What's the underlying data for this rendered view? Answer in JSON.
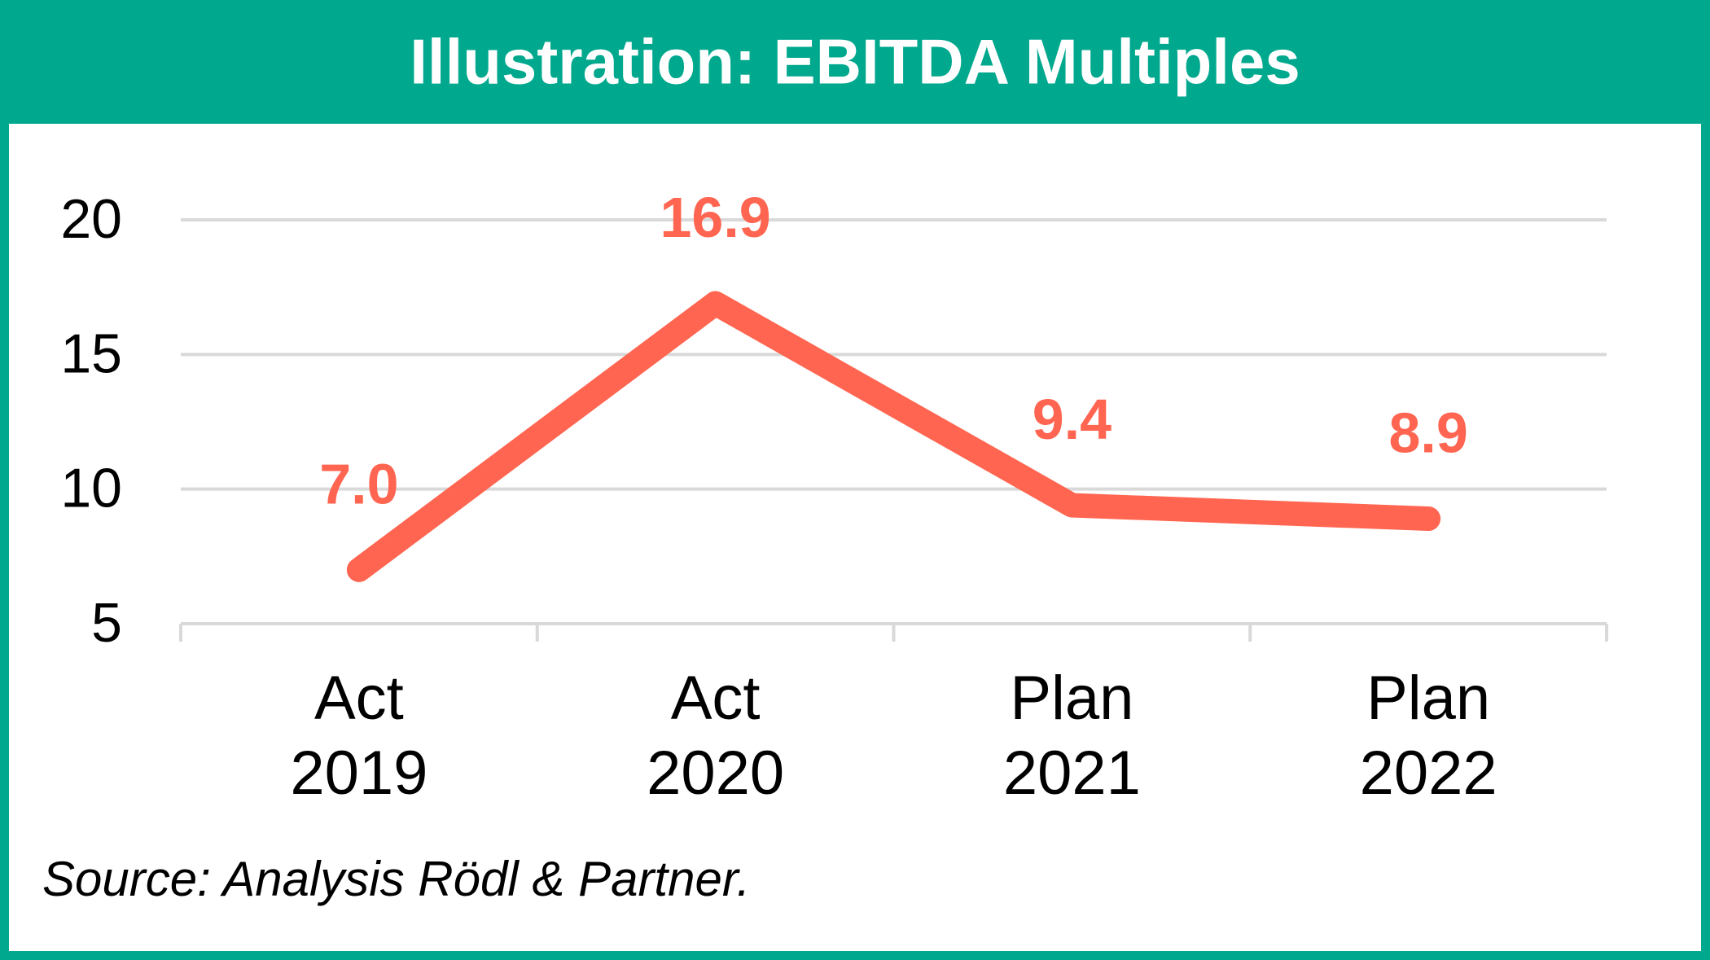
{
  "chart_data": {
    "type": "line",
    "title": "Illustration: EBITDA Multiples",
    "categories": [
      "Act 2019",
      "Act 2020",
      "Plan 2021",
      "Plan 2022"
    ],
    "values": [
      7.0,
      16.9,
      9.4,
      8.9
    ],
    "value_labels": [
      "7.0",
      "16.9",
      "9.4",
      "8.9"
    ],
    "color": "#ff6550",
    "ylim": [
      5,
      20
    ],
    "yticks": [
      5,
      10,
      15,
      20
    ],
    "grid": true,
    "source": "Source: Analysis Rödl & Partner."
  }
}
